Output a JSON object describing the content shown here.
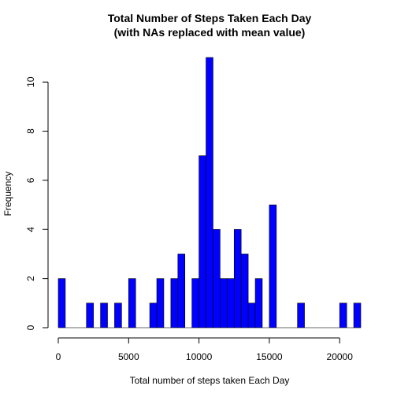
{
  "chart_data": {
    "type": "bar",
    "title": [
      "Total Number of Steps Taken Each Day",
      "(with NAs replaced with mean value)"
    ],
    "xlabel": "Total number of steps taken Each Day",
    "ylabel": "Frequency",
    "xlim": [
      0,
      21500
    ],
    "ylim": [
      0,
      11
    ],
    "bin_width": 500,
    "x_ticks": [
      0,
      5000,
      10000,
      15000,
      20000
    ],
    "x_tick_labels": [
      "0",
      "5000",
      "10000",
      "15000",
      "20000"
    ],
    "y_ticks": [
      0,
      2,
      4,
      6,
      8,
      10
    ],
    "y_tick_labels": [
      "0",
      "2",
      "4",
      "6",
      "8",
      "10"
    ],
    "bin_starts": [
      0,
      500,
      1000,
      1500,
      2000,
      2500,
      3000,
      3500,
      4000,
      4500,
      5000,
      5500,
      6000,
      6500,
      7000,
      7500,
      8000,
      8500,
      9000,
      9500,
      10000,
      10500,
      11000,
      11500,
      12000,
      12500,
      13000,
      13500,
      14000,
      14500,
      15000,
      15500,
      16000,
      16500,
      17000,
      17500,
      18000,
      18500,
      19000,
      19500,
      20000,
      20500,
      21000
    ],
    "values": [
      2,
      0,
      0,
      0,
      1,
      0,
      1,
      0,
      1,
      0,
      2,
      0,
      0,
      1,
      2,
      0,
      2,
      3,
      0,
      2,
      7,
      11,
      4,
      2,
      2,
      4,
      3,
      1,
      2,
      0,
      5,
      0,
      0,
      0,
      1,
      0,
      0,
      0,
      0,
      0,
      1,
      0,
      1
    ],
    "bar_color": "#0000ff",
    "grid": false,
    "legend": "none"
  }
}
